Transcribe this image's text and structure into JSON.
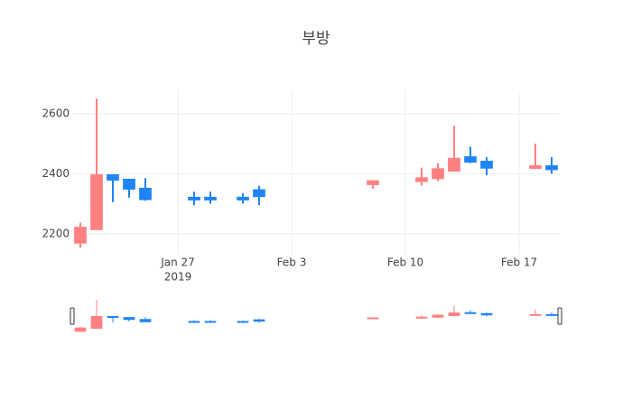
{
  "chart_data": {
    "type": "candlestick",
    "title": "부방",
    "x": [
      "2019-01-21",
      "2019-01-22",
      "2019-01-23",
      "2019-01-24",
      "2019-01-25",
      "2019-01-28",
      "2019-01-29",
      "2019-01-31",
      "2019-02-01",
      "2019-02-08",
      "2019-02-11",
      "2019-02-12",
      "2019-02-13",
      "2019-02-14",
      "2019-02-15",
      "2019-02-18",
      "2019-02-19"
    ],
    "open": [
      2170,
      2215,
      2395,
      2380,
      2350,
      2320,
      2320,
      2320,
      2345,
      2365,
      2375,
      2385,
      2410,
      2455,
      2440,
      2420,
      2425
    ],
    "high": [
      2237,
      2650,
      2395,
      2380,
      2385,
      2340,
      2340,
      2335,
      2360,
      2375,
      2420,
      2435,
      2560,
      2490,
      2455,
      2500,
      2455
    ],
    "low": [
      2154,
      2215,
      2305,
      2320,
      2310,
      2295,
      2300,
      2300,
      2295,
      2350,
      2360,
      2375,
      2410,
      2435,
      2395,
      2420,
      2400
    ],
    "close": [
      2220,
      2395,
      2380,
      2350,
      2315,
      2315,
      2315,
      2315,
      2325,
      2375,
      2385,
      2415,
      2450,
      2440,
      2420,
      2425,
      2415
    ],
    "increasing_color": "#ff8080",
    "decreasing_color": "#1f84f5",
    "xlim": [
      "2019-01-20T12:00",
      "2019-02-19T12:00"
    ],
    "xticks": [
      {
        "value": "2019-01-27",
        "label": "Jan 27"
      },
      {
        "value": "2019-02-03",
        "label": "Feb 3"
      },
      {
        "value": "2019-02-10",
        "label": "Feb 10"
      },
      {
        "value": "2019-02-17",
        "label": "Feb 17"
      }
    ],
    "x_year_label": "2019",
    "ylim": [
      2127,
      2678
    ],
    "yticks": [
      2200,
      2400,
      2600
    ],
    "grid": true,
    "rangeslider": true
  }
}
